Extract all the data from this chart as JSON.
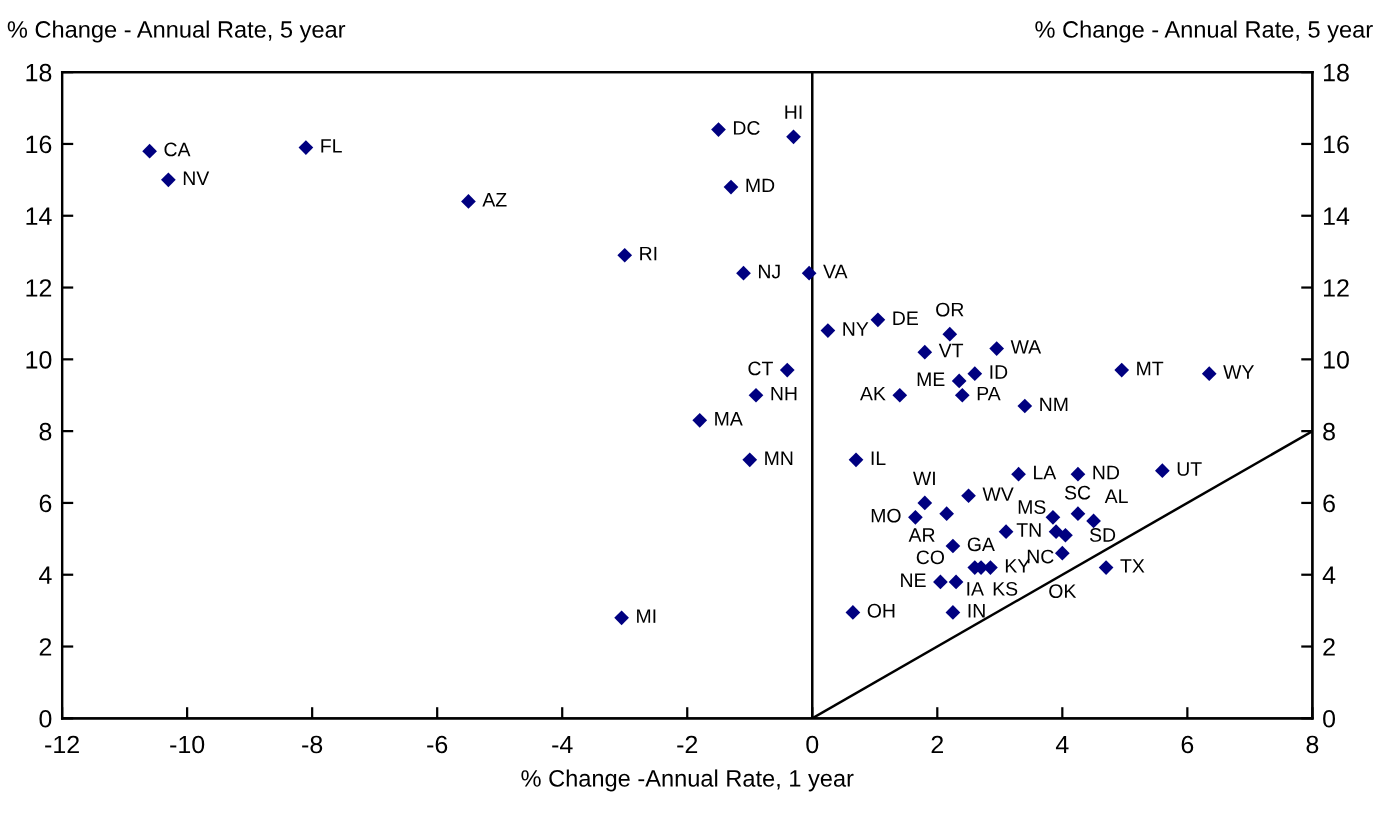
{
  "chart_data": {
    "type": "scatter",
    "xlabel": "% Change -Annual Rate, 1 year",
    "ylabel": "% Change - Annual Rate, 5 year",
    "y2label": "% Change - Annual Rate, 5 year",
    "xlim": [
      -12,
      8
    ],
    "xticks": [
      -12,
      -10,
      -8,
      -6,
      -4,
      -2,
      0,
      2,
      4,
      6,
      8
    ],
    "ylim": [
      0,
      18
    ],
    "yticks": [
      0,
      2,
      4,
      6,
      8,
      10,
      12,
      14,
      16,
      18
    ],
    "y2lim": [
      0,
      18
    ],
    "y2ticks": [
      0,
      2,
      4,
      6,
      8,
      10,
      12,
      14,
      16,
      18
    ],
    "grid": false,
    "legend": false,
    "ref_lines": [
      {
        "axis": "x",
        "value": 0,
        "label": null,
        "color": "#000000"
      }
    ],
    "series": [
      {
        "color": "#000080",
        "marker": "diamond",
        "x": [
          -10.6,
          -10.3,
          -8.1,
          -5.5,
          -3.0,
          -1.5,
          -0.3,
          -1.3,
          -1.1,
          -0.05,
          -0.4,
          -0.9,
          -1.8,
          -1.0,
          -3.05,
          0.25,
          1.05,
          2.2,
          1.8,
          2.95,
          2.6,
          2.35,
          1.4,
          2.4,
          3.4,
          4.95,
          6.35,
          0.7,
          3.3,
          4.25,
          5.6,
          1.8,
          2.5,
          1.65,
          2.15,
          2.25,
          3.1,
          3.85,
          4.25,
          4.5,
          3.9,
          4.05,
          4.0,
          4.7,
          2.6,
          2.7,
          2.85,
          2.05,
          2.3,
          2.25,
          0.65
        ],
        "values": [
          15.8,
          15.0,
          15.9,
          14.4,
          12.9,
          16.4,
          16.2,
          14.8,
          12.4,
          12.4,
          9.7,
          9.0,
          8.3,
          7.2,
          2.8,
          10.8,
          11.1,
          10.7,
          10.2,
          10.3,
          9.6,
          9.4,
          9.0,
          9.0,
          8.7,
          9.7,
          9.6,
          7.2,
          6.8,
          6.8,
          6.9,
          6.0,
          6.2,
          5.6,
          5.7,
          4.8,
          5.2,
          5.6,
          5.7,
          5.5,
          5.2,
          5.1,
          4.6,
          4.2,
          4.2,
          4.2,
          4.2,
          3.8,
          3.8,
          2.95,
          2.95
        ]
      },
      {
        "type": "line",
        "color": "#000000",
        "x": [
          0,
          8
        ],
        "values": [
          0,
          8
        ]
      }
    ],
    "annotations": [
      {
        "text": "CA",
        "x": -10.6,
        "y": 15.8
      },
      {
        "text": "NV",
        "x": -10.3,
        "y": 15.0
      },
      {
        "text": "FL",
        "x": -8.1,
        "y": 15.9
      },
      {
        "text": "AZ",
        "x": -5.5,
        "y": 14.4
      },
      {
        "text": "RI",
        "x": -3.0,
        "y": 12.9
      },
      {
        "text": "DC",
        "x": -1.5,
        "y": 16.4
      },
      {
        "text": "HI",
        "x": -0.3,
        "y": 16.2
      },
      {
        "text": "MD",
        "x": -1.3,
        "y": 14.8
      },
      {
        "text": "NJ",
        "x": -1.1,
        "y": 12.4
      },
      {
        "text": "VA",
        "x": -0.05,
        "y": 12.4
      },
      {
        "text": "CT",
        "x": -0.4,
        "y": 9.7
      },
      {
        "text": "NH",
        "x": -0.9,
        "y": 9.0
      },
      {
        "text": "MA",
        "x": -1.8,
        "y": 8.3
      },
      {
        "text": "MN",
        "x": -1.0,
        "y": 7.2
      },
      {
        "text": "MI",
        "x": -3.05,
        "y": 2.8
      },
      {
        "text": "NY",
        "x": 0.25,
        "y": 10.8
      },
      {
        "text": "DE",
        "x": 1.05,
        "y": 11.1
      },
      {
        "text": "OR",
        "x": 2.2,
        "y": 10.7
      },
      {
        "text": "VT",
        "x": 1.8,
        "y": 10.2
      },
      {
        "text": "WA",
        "x": 2.95,
        "y": 10.3
      },
      {
        "text": "ID",
        "x": 2.6,
        "y": 9.6
      },
      {
        "text": "ME",
        "x": 2.35,
        "y": 9.4
      },
      {
        "text": "AK",
        "x": 1.4,
        "y": 9.0
      },
      {
        "text": "PA",
        "x": 2.4,
        "y": 9.0
      },
      {
        "text": "NM",
        "x": 3.4,
        "y": 8.7
      },
      {
        "text": "MT",
        "x": 4.95,
        "y": 9.7
      },
      {
        "text": "WY",
        "x": 6.35,
        "y": 9.6
      },
      {
        "text": "IL",
        "x": 0.7,
        "y": 7.2
      },
      {
        "text": "LA",
        "x": 3.3,
        "y": 6.8
      },
      {
        "text": "ND",
        "x": 4.25,
        "y": 6.8
      },
      {
        "text": "UT",
        "x": 5.6,
        "y": 6.9
      },
      {
        "text": "WI",
        "x": 1.8,
        "y": 6.0
      },
      {
        "text": "WV",
        "x": 2.5,
        "y": 6.2
      },
      {
        "text": "MO",
        "x": 1.65,
        "y": 5.6
      },
      {
        "text": "AR",
        "x": 2.15,
        "y": 5.7
      },
      {
        "text": "GA",
        "x": 2.25,
        "y": 4.8
      },
      {
        "text": "MS",
        "x": 3.1,
        "y": 5.2
      },
      {
        "text": "SC",
        "x": 3.85,
        "y": 5.6
      },
      {
        "text": "SD",
        "x": 4.25,
        "y": 5.7
      },
      {
        "text": "AL",
        "x": 4.5,
        "y": 5.5
      },
      {
        "text": "TN",
        "x": 3.9,
        "y": 5.2
      },
      {
        "text": "NC",
        "x": 4.05,
        "y": 5.1
      },
      {
        "text": "OK",
        "x": 4.0,
        "y": 4.6
      },
      {
        "text": "TX",
        "x": 4.7,
        "y": 4.2
      },
      {
        "text": "IA",
        "x": 2.6,
        "y": 4.2
      },
      {
        "text": "KS",
        "x": 2.7,
        "y": 4.2
      },
      {
        "text": "KY",
        "x": 2.85,
        "y": 4.2
      },
      {
        "text": "NE",
        "x": 2.05,
        "y": 3.8
      },
      {
        "text": "CO",
        "x": 2.3,
        "y": 3.8
      },
      {
        "text": "IN",
        "x": 2.25,
        "y": 2.95
      },
      {
        "text": "OH",
        "x": 0.65,
        "y": 2.95
      }
    ]
  }
}
